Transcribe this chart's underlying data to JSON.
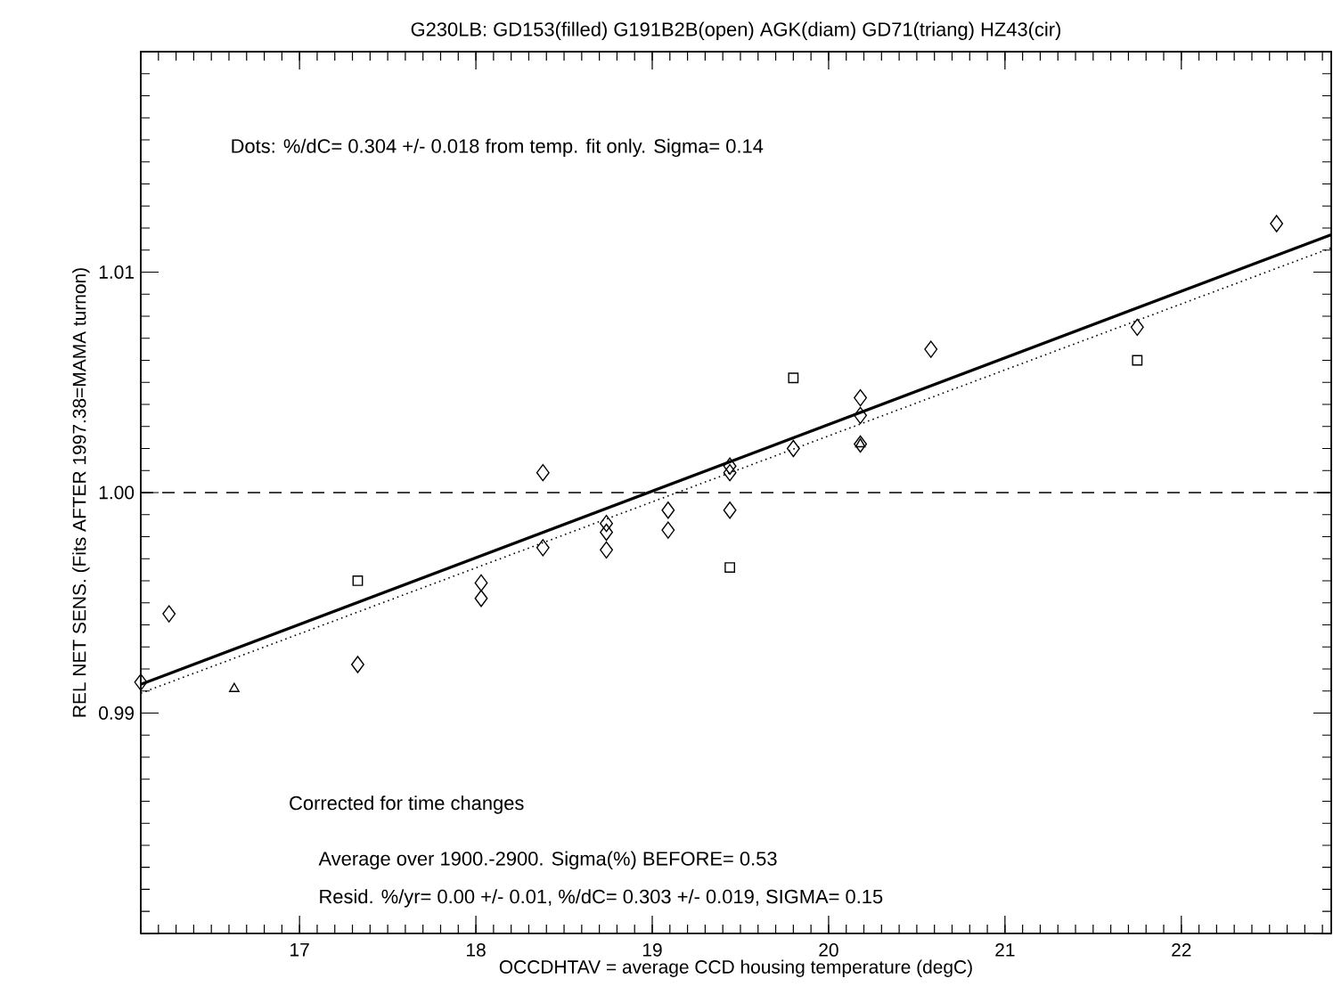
{
  "chart_data": {
    "type": "scatter",
    "title": "G230LB: GD153(filled) G191B2B(open) AGK(diam) GD71(triang) HZ43(cir)",
    "xlabel": "OCCDHTAV =  average CCD housing temperature (degC)",
    "ylabel": "REL NET SENS. (Fits AFTER 1997.38=MAMA turnon)",
    "xlim": [
      16.1,
      22.85
    ],
    "ylim": [
      0.98,
      1.02
    ],
    "xticks": [
      17,
      18,
      19,
      20,
      21,
      22
    ],
    "yticks": [
      {
        "value": 0.98,
        "label": null
      },
      0.99,
      {
        "value": 1.0,
        "label": "1.00"
      },
      1.01,
      {
        "value": 1.02,
        "label": null
      }
    ],
    "grid": false,
    "series": [
      {
        "type": "scatter",
        "marker": "diamond",
        "color": "#000000",
        "x": [
          16.1,
          16.26,
          17.33,
          18.03,
          18.03,
          18.38,
          18.38,
          18.74,
          18.74,
          18.74,
          19.09,
          19.09,
          19.44,
          19.44,
          19.44,
          19.8,
          20.18,
          20.18,
          20.18,
          20.58,
          21.75,
          22.54
        ],
        "values": [
          0.9914,
          0.9945,
          0.9922,
          0.9959,
          0.9952,
          0.9975,
          1.0009,
          0.9986,
          0.9982,
          0.9974,
          0.9992,
          0.9983,
          1.0012,
          1.0009,
          0.9992,
          1.002,
          1.0043,
          1.0035,
          1.0022,
          1.0065,
          1.0075,
          1.0122
        ]
      },
      {
        "type": "scatter",
        "marker": "square",
        "color": "#000000",
        "x": [
          17.33,
          19.8,
          21.75
        ],
        "values": [
          0.996,
          1.0052,
          1.006
        ]
      },
      {
        "type": "scatter",
        "marker": "square",
        "color": "#000000",
        "x": [
          19.44
        ],
        "values": [
          0.9966
        ]
      },
      {
        "type": "scatter",
        "marker": "triangle",
        "color": "#000000",
        "x": [
          16.63,
          20.18
        ],
        "values": [
          0.9911,
          1.0022
        ]
      },
      {
        "type": "line",
        "line_style": "solid",
        "color": "#000000",
        "x": [
          16.1,
          22.85
        ],
        "values": [
          0.9913,
          1.0117
        ]
      },
      {
        "type": "line",
        "line_style": "dotted",
        "color": "#000000",
        "x": [
          16.1,
          22.85
        ],
        "values": [
          0.9909,
          1.0111
        ]
      }
    ],
    "ref_lines": [
      {
        "axis": "y",
        "value": 1.0,
        "line_style": "dashed",
        "color": "#000000"
      }
    ],
    "annotations": [
      "Dots: %/dC= 0.304 +/- 0.018 from temp. fit only. Sigma= 0.14",
      "Corrected for time changes",
      "Average over 1900.-2900.  Sigma(%) BEFORE= 0.53",
      "Resid. %/yr= 0.00 +/- 0.01, %/dC= 0.303 +/- 0.019, SIGMA= 0.15"
    ]
  }
}
